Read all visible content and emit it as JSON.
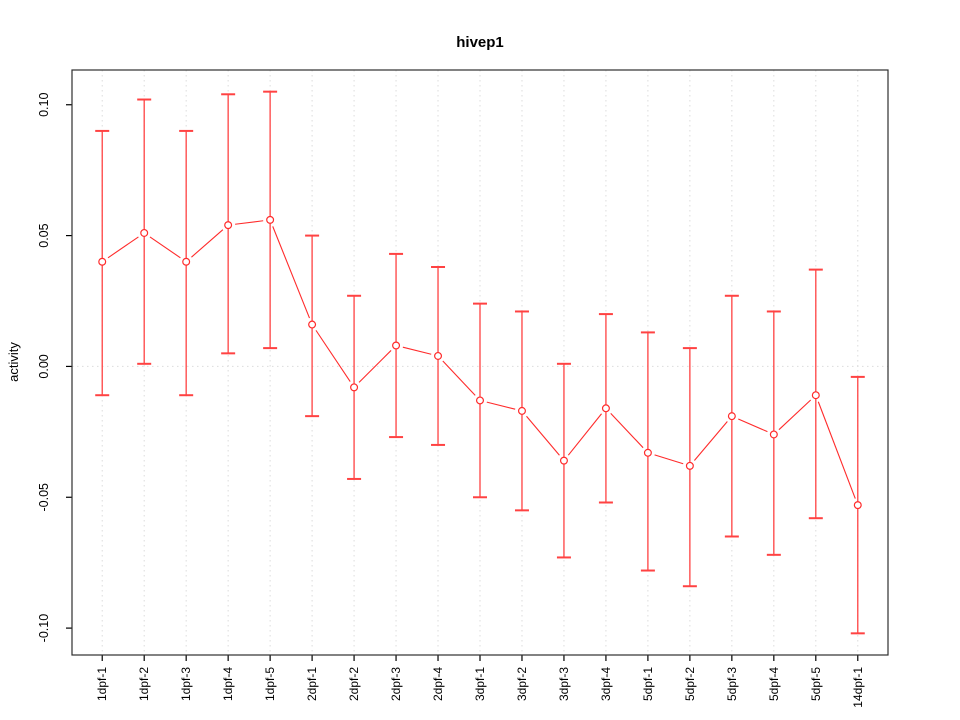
{
  "chart_data": {
    "type": "line",
    "title": "hivep1",
    "ylabel": "activity",
    "xlabel": "",
    "legend": "none",
    "grid": "dotted vertical gridline at each category; dotted horizontal line at y=0",
    "point_style": "open-circle",
    "error_bars": true,
    "categories": [
      "1dpf-1",
      "1dpf-2",
      "1dpf-3",
      "1dpf-4",
      "1dpf-5",
      "2dpf-1",
      "2dpf-2",
      "2dpf-3",
      "2dpf-4",
      "3dpf-1",
      "3dpf-2",
      "3dpf-3",
      "3dpf-4",
      "5dpf-1",
      "5dpf-2",
      "5dpf-3",
      "5dpf-4",
      "5dpf-5",
      "14dpf-1"
    ],
    "series": [
      {
        "name": "activity",
        "values": [
          0.04,
          0.051,
          0.04,
          0.054,
          0.056,
          0.016,
          -0.008,
          0.008,
          0.004,
          -0.013,
          -0.017,
          -0.036,
          -0.016,
          -0.033,
          -0.038,
          -0.019,
          -0.026,
          -0.011,
          -0.053
        ],
        "upper": [
          0.09,
          0.102,
          0.09,
          0.104,
          0.105,
          0.05,
          0.027,
          0.043,
          0.038,
          0.024,
          0.021,
          0.001,
          0.02,
          0.013,
          0.007,
          0.027,
          0.021,
          0.037,
          -0.004
        ],
        "lower": [
          -0.011,
          0.001,
          -0.011,
          0.005,
          0.007,
          -0.019,
          -0.043,
          -0.027,
          -0.03,
          -0.05,
          -0.055,
          -0.073,
          -0.052,
          -0.078,
          -0.084,
          -0.065,
          -0.072,
          -0.058,
          -0.102
        ]
      }
    ],
    "ylim": [
      -0.11,
      0.113
    ],
    "yticks": [
      -0.1,
      -0.05,
      0.0,
      0.05,
      0.1
    ],
    "ytick_labels": [
      "-0.10",
      "-0.05",
      "0.00",
      "0.05",
      "0.10"
    ],
    "colors": {
      "series": "#ff2b2b",
      "error_bar": "#ff4242",
      "grid": "#dcdcdc",
      "box": "#2e2e2e",
      "tick": "#000000",
      "text": "#000000",
      "background": "#ffffff"
    }
  }
}
